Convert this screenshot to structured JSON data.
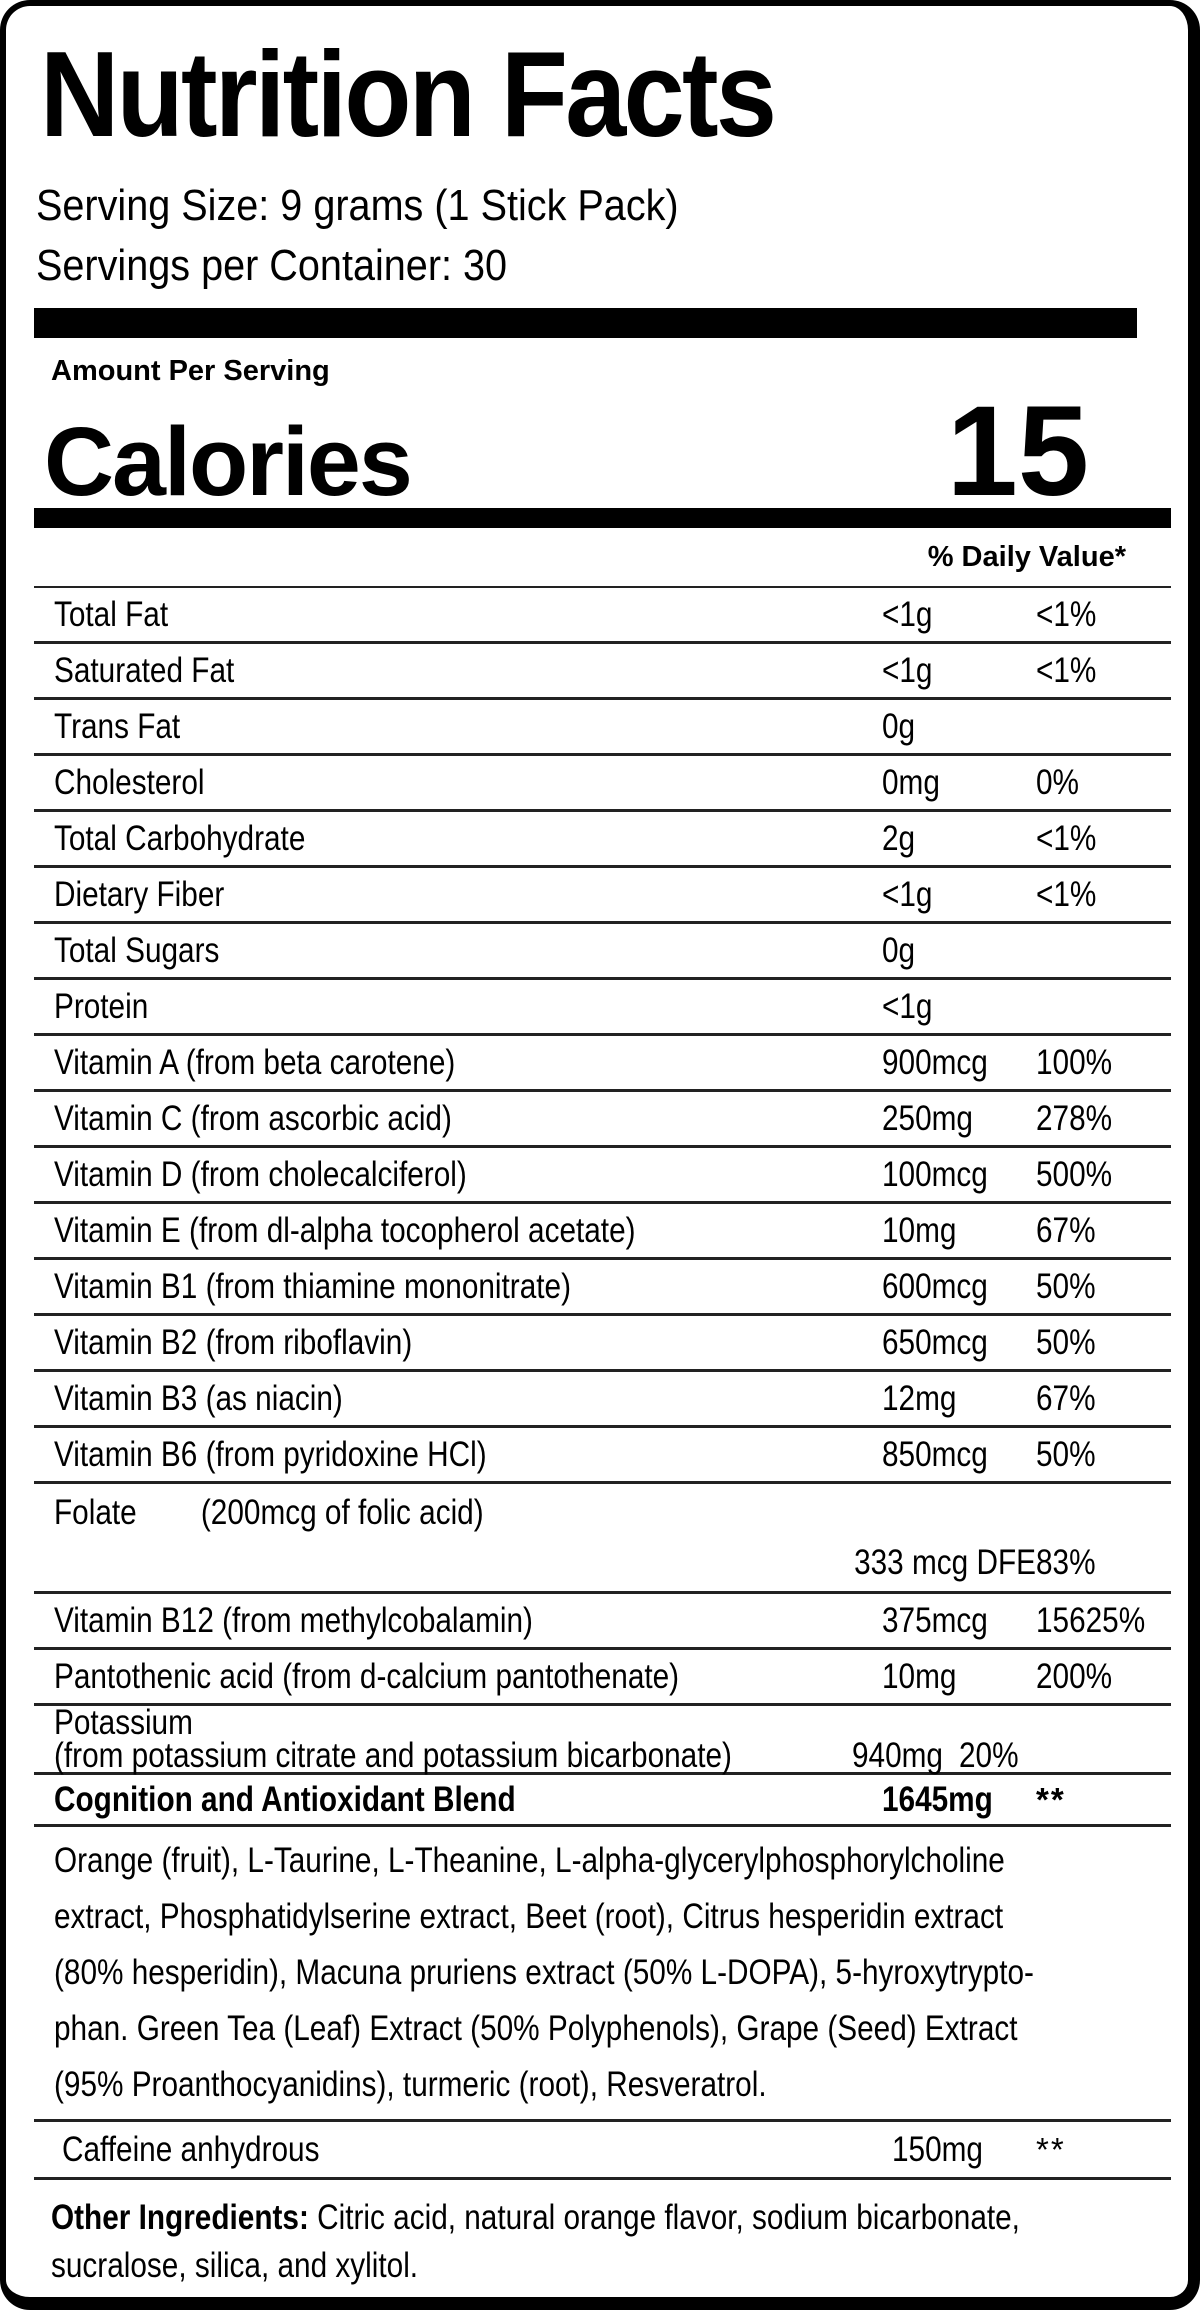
{
  "title": "Nutrition Facts",
  "serving": {
    "size": "Serving Size: 9 grams (1 Stick Pack)",
    "per_container": "Servings per Container: 30"
  },
  "amount_per_serving_label": "Amount Per Serving",
  "calories": {
    "label": "Calories",
    "value": "15"
  },
  "daily_value_header": "% Daily Value*",
  "nutrients": [
    {
      "label": "Total Fat",
      "amount": "<1g",
      "dv": "<1%"
    },
    {
      "label": "Saturated Fat",
      "amount": "<1g",
      "dv": "<1%"
    },
    {
      "label": "Trans Fat",
      "amount": "0g",
      "dv": ""
    },
    {
      "label": "Cholesterol",
      "amount": "0mg",
      "dv": "0%"
    },
    {
      "label": "Total Carbohydrate",
      "amount": "2g",
      "dv": "<1%"
    },
    {
      "label": "Dietary Fiber",
      "amount": "<1g",
      "dv": "<1%"
    },
    {
      "label": "Total Sugars",
      "amount": "0g",
      "dv": ""
    },
    {
      "label": "Protein",
      "amount": "<1g",
      "dv": ""
    },
    {
      "label": "Vitamin A (from beta carotene)",
      "amount": "900mcg",
      "dv": "100%"
    },
    {
      "label": "Vitamin C (from ascorbic acid)",
      "amount": "250mg",
      "dv": "278%"
    },
    {
      "label": "Vitamin D (from cholecalciferol)",
      "amount": "100mcg",
      "dv": "500%"
    },
    {
      "label": "Vitamin E (from dl-alpha tocopherol acetate)",
      "amount": "10mg",
      "dv": "67%"
    },
    {
      "label": "Vitamin B1 (from thiamine mononitrate)",
      "amount": "600mcg",
      "dv": "50%"
    },
    {
      "label": "Vitamin B2 (from riboflavin)",
      "amount": "650mcg",
      "dv": "50%"
    },
    {
      "label": "Vitamin B3 (as niacin)",
      "amount": "12mg",
      "dv": "67%"
    },
    {
      "label": "Vitamin B6 (from pyridoxine HCl)",
      "amount": "850mcg",
      "dv": "50%"
    }
  ],
  "folate": {
    "label": "Folate",
    "note": "(200mcg of folic acid)",
    "amount": "333 mcg DFE",
    "dv": "83%"
  },
  "b12": {
    "label": "Vitamin B12 (from methylcobalamin)",
    "amount": "375mcg",
    "dv": "15625%"
  },
  "pantothenic": {
    "label": "Pantothenic acid (from d-calcium pantothenate)",
    "amount": "10mg",
    "dv": "200%"
  },
  "potassium": {
    "label": "Potassium",
    "sub": "(from potassium citrate and potassium bicarbonate)",
    "amount": "940mg",
    "dv": "20%"
  },
  "blend": {
    "label": "Cognition and Antioxidant Blend",
    "amount": "1645mg",
    "dv": "**",
    "description_lines": [
      "Orange (fruit), L-Taurine, L-Theanine, L-alpha-glycerylphosphorylcholine",
      "extract, Phosphatidylserine extract, Beet (root), Citrus hesperidin extract",
      "(80% hesperidin), Macuna pruriens extract (50% L-DOPA), 5-hyroxytrypto-",
      "phan. Green Tea (Leaf) Extract (50% Polyphenols), Grape (Seed) Extract",
      "(95% Proanthocyanidins), turmeric (root), Resveratrol."
    ]
  },
  "caffeine": {
    "label": "Caffeine anhydrous",
    "amount": "150mg",
    "dv": "**"
  },
  "other_ingredients": {
    "label": "Other Ingredients:",
    "line1": "Citric acid, natural orange flavor, sodium bicarbonate,",
    "line2": "sucralose, silica, and xylitol."
  },
  "colors": {
    "ink": "#000000",
    "paper": "#ffffff"
  }
}
